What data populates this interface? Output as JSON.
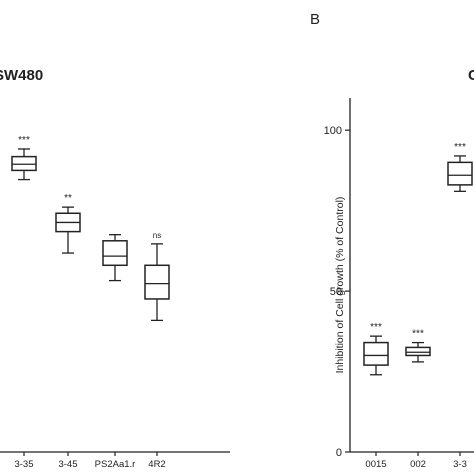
{
  "panel_b_label": "B",
  "panel_a_title": "SW480",
  "panel_b_title_fragment": "C",
  "chart_data": [
    {
      "type": "box",
      "panel": "A",
      "title": "SW480",
      "categories": [
        "3-35",
        "3-45",
        "PS2Aa1.r",
        "4R2"
      ],
      "significance": [
        "***",
        "**",
        "",
        "ns"
      ],
      "boxes": [
        {
          "min": 89,
          "q1": 92,
          "median": 94,
          "q3": 96.5,
          "max": 99
        },
        {
          "min": 65,
          "q1": 72,
          "median": 75,
          "q3": 78,
          "max": 80
        },
        {
          "min": 56,
          "q1": 61,
          "median": 64,
          "q3": 69,
          "max": 71
        },
        {
          "min": 43,
          "q1": 50,
          "median": 55,
          "q3": 61,
          "max": 68
        }
      ],
      "ylim": [
        0,
        115
      ]
    },
    {
      "type": "box",
      "panel": "B",
      "ylabel": "Inhibition of Cell growth (% of Control)",
      "yticks": [
        0,
        50,
        100
      ],
      "categories": [
        "0015",
        "002",
        "3-3"
      ],
      "significance": [
        "***",
        "***",
        "***"
      ],
      "boxes": [
        {
          "min": 24,
          "q1": 27,
          "median": 30,
          "q3": 34,
          "max": 36
        },
        {
          "min": 28,
          "q1": 30,
          "median": 31,
          "q3": 32.5,
          "max": 34
        },
        {
          "min": 81,
          "q1": 83,
          "median": 86,
          "q3": 90,
          "max": 92
        }
      ],
      "ylim": [
        0,
        110
      ]
    }
  ]
}
